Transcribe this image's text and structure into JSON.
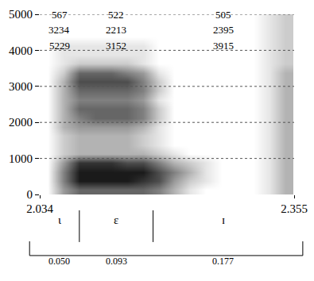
{
  "chart_data": {
    "type": "spectrogram",
    "xlim": [
      2.034,
      2.355
    ],
    "xticks": [
      2.034,
      2.355
    ],
    "ylim": [
      0,
      5000
    ],
    "yticks": [
      0,
      1000,
      2000,
      3000,
      4000,
      5000
    ],
    "grid": true,
    "x": [
      2.044,
      2.064,
      2.084,
      2.104,
      2.124,
      2.144,
      2.164,
      2.184,
      2.204,
      2.224,
      2.244,
      2.264,
      2.284,
      2.304,
      2.324,
      2.344
    ],
    "y": [
      125,
      375,
      625,
      875,
      1125,
      1375,
      1625,
      1875,
      2125,
      2375,
      2625,
      2875,
      3125,
      3375,
      3625,
      3875,
      4125,
      4375,
      4625,
      4875
    ],
    "zlim": [
      0,
      9
    ],
    "cells": [
      [
        0,
        4,
        6,
        6,
        6,
        6,
        6,
        5,
        3,
        1,
        0,
        0,
        0,
        0,
        1,
        3
      ],
      [
        0,
        5,
        9,
        9,
        9,
        9,
        8,
        7,
        4,
        2,
        1,
        0,
        0,
        0,
        1,
        3
      ],
      [
        0,
        5,
        9,
        9,
        9,
        9,
        9,
        7,
        5,
        3,
        1,
        0,
        0,
        0,
        1,
        3
      ],
      [
        0,
        4,
        8,
        8,
        8,
        7,
        7,
        5,
        3,
        2,
        1,
        0,
        0,
        0,
        1,
        3
      ],
      [
        0,
        2,
        3,
        3,
        3,
        3,
        3,
        2,
        1,
        0,
        0,
        0,
        0,
        0,
        1,
        3
      ],
      [
        0,
        2,
        3,
        3,
        3,
        3,
        2,
        1,
        0,
        0,
        0,
        0,
        0,
        0,
        1,
        3
      ],
      [
        0,
        2,
        3,
        3,
        3,
        3,
        2,
        1,
        0,
        0,
        0,
        0,
        0,
        0,
        1,
        3
      ],
      [
        0,
        3,
        4,
        4,
        4,
        4,
        3,
        1,
        0,
        0,
        0,
        0,
        0,
        0,
        1,
        3
      ],
      [
        0,
        3,
        5,
        6,
        6,
        6,
        5,
        2,
        0,
        0,
        0,
        0,
        0,
        0,
        1,
        3
      ],
      [
        0,
        3,
        6,
        6,
        6,
        6,
        5,
        2,
        0,
        0,
        0,
        0,
        0,
        0,
        1,
        3
      ],
      [
        0,
        3,
        5,
        5,
        5,
        5,
        4,
        1,
        0,
        0,
        0,
        0,
        0,
        0,
        1,
        3
      ],
      [
        0,
        3,
        6,
        6,
        6,
        6,
        5,
        2,
        0,
        0,
        0,
        0,
        0,
        0,
        1,
        3
      ],
      [
        0,
        3,
        7,
        7,
        7,
        7,
        5,
        2,
        0,
        0,
        0,
        0,
        0,
        0,
        1,
        3
      ],
      [
        0,
        2,
        6,
        6,
        6,
        5,
        4,
        1,
        0,
        0,
        0,
        0,
        0,
        0,
        1,
        3
      ],
      [
        0,
        1,
        2,
        2,
        2,
        2,
        1,
        0,
        0,
        0,
        0,
        0,
        0,
        0,
        1,
        2
      ],
      [
        0,
        1,
        1,
        1,
        1,
        1,
        1,
        0,
        0,
        0,
        0,
        0,
        0,
        0,
        1,
        2
      ],
      [
        0,
        1,
        1,
        1,
        1,
        1,
        1,
        0,
        0,
        0,
        0,
        0,
        0,
        0,
        1,
        2
      ],
      [
        0,
        0,
        0,
        0,
        0,
        0,
        0,
        0,
        0,
        0,
        0,
        0,
        0,
        0,
        1,
        2
      ],
      [
        0,
        0,
        0,
        0,
        0,
        0,
        0,
        0,
        0,
        0,
        0,
        0,
        0,
        0,
        1,
        2
      ],
      [
        0,
        0,
        0,
        0,
        0,
        0,
        0,
        0,
        0,
        0,
        0,
        0,
        0,
        0,
        1,
        2
      ]
    ],
    "segments": [
      {
        "label": "ɩ",
        "duration": 0.05,
        "duration_label": "0.050",
        "formants": [
          567,
          3234,
          5229
        ]
      },
      {
        "label": "ɛ",
        "duration": 0.093,
        "duration_label": "0.093",
        "formants": [
          522,
          2213,
          3152
        ]
      },
      {
        "label": "ɪ",
        "duration": 0.177,
        "duration_label": "0.177",
        "formants": [
          505,
          2395,
          3915
        ]
      }
    ]
  }
}
